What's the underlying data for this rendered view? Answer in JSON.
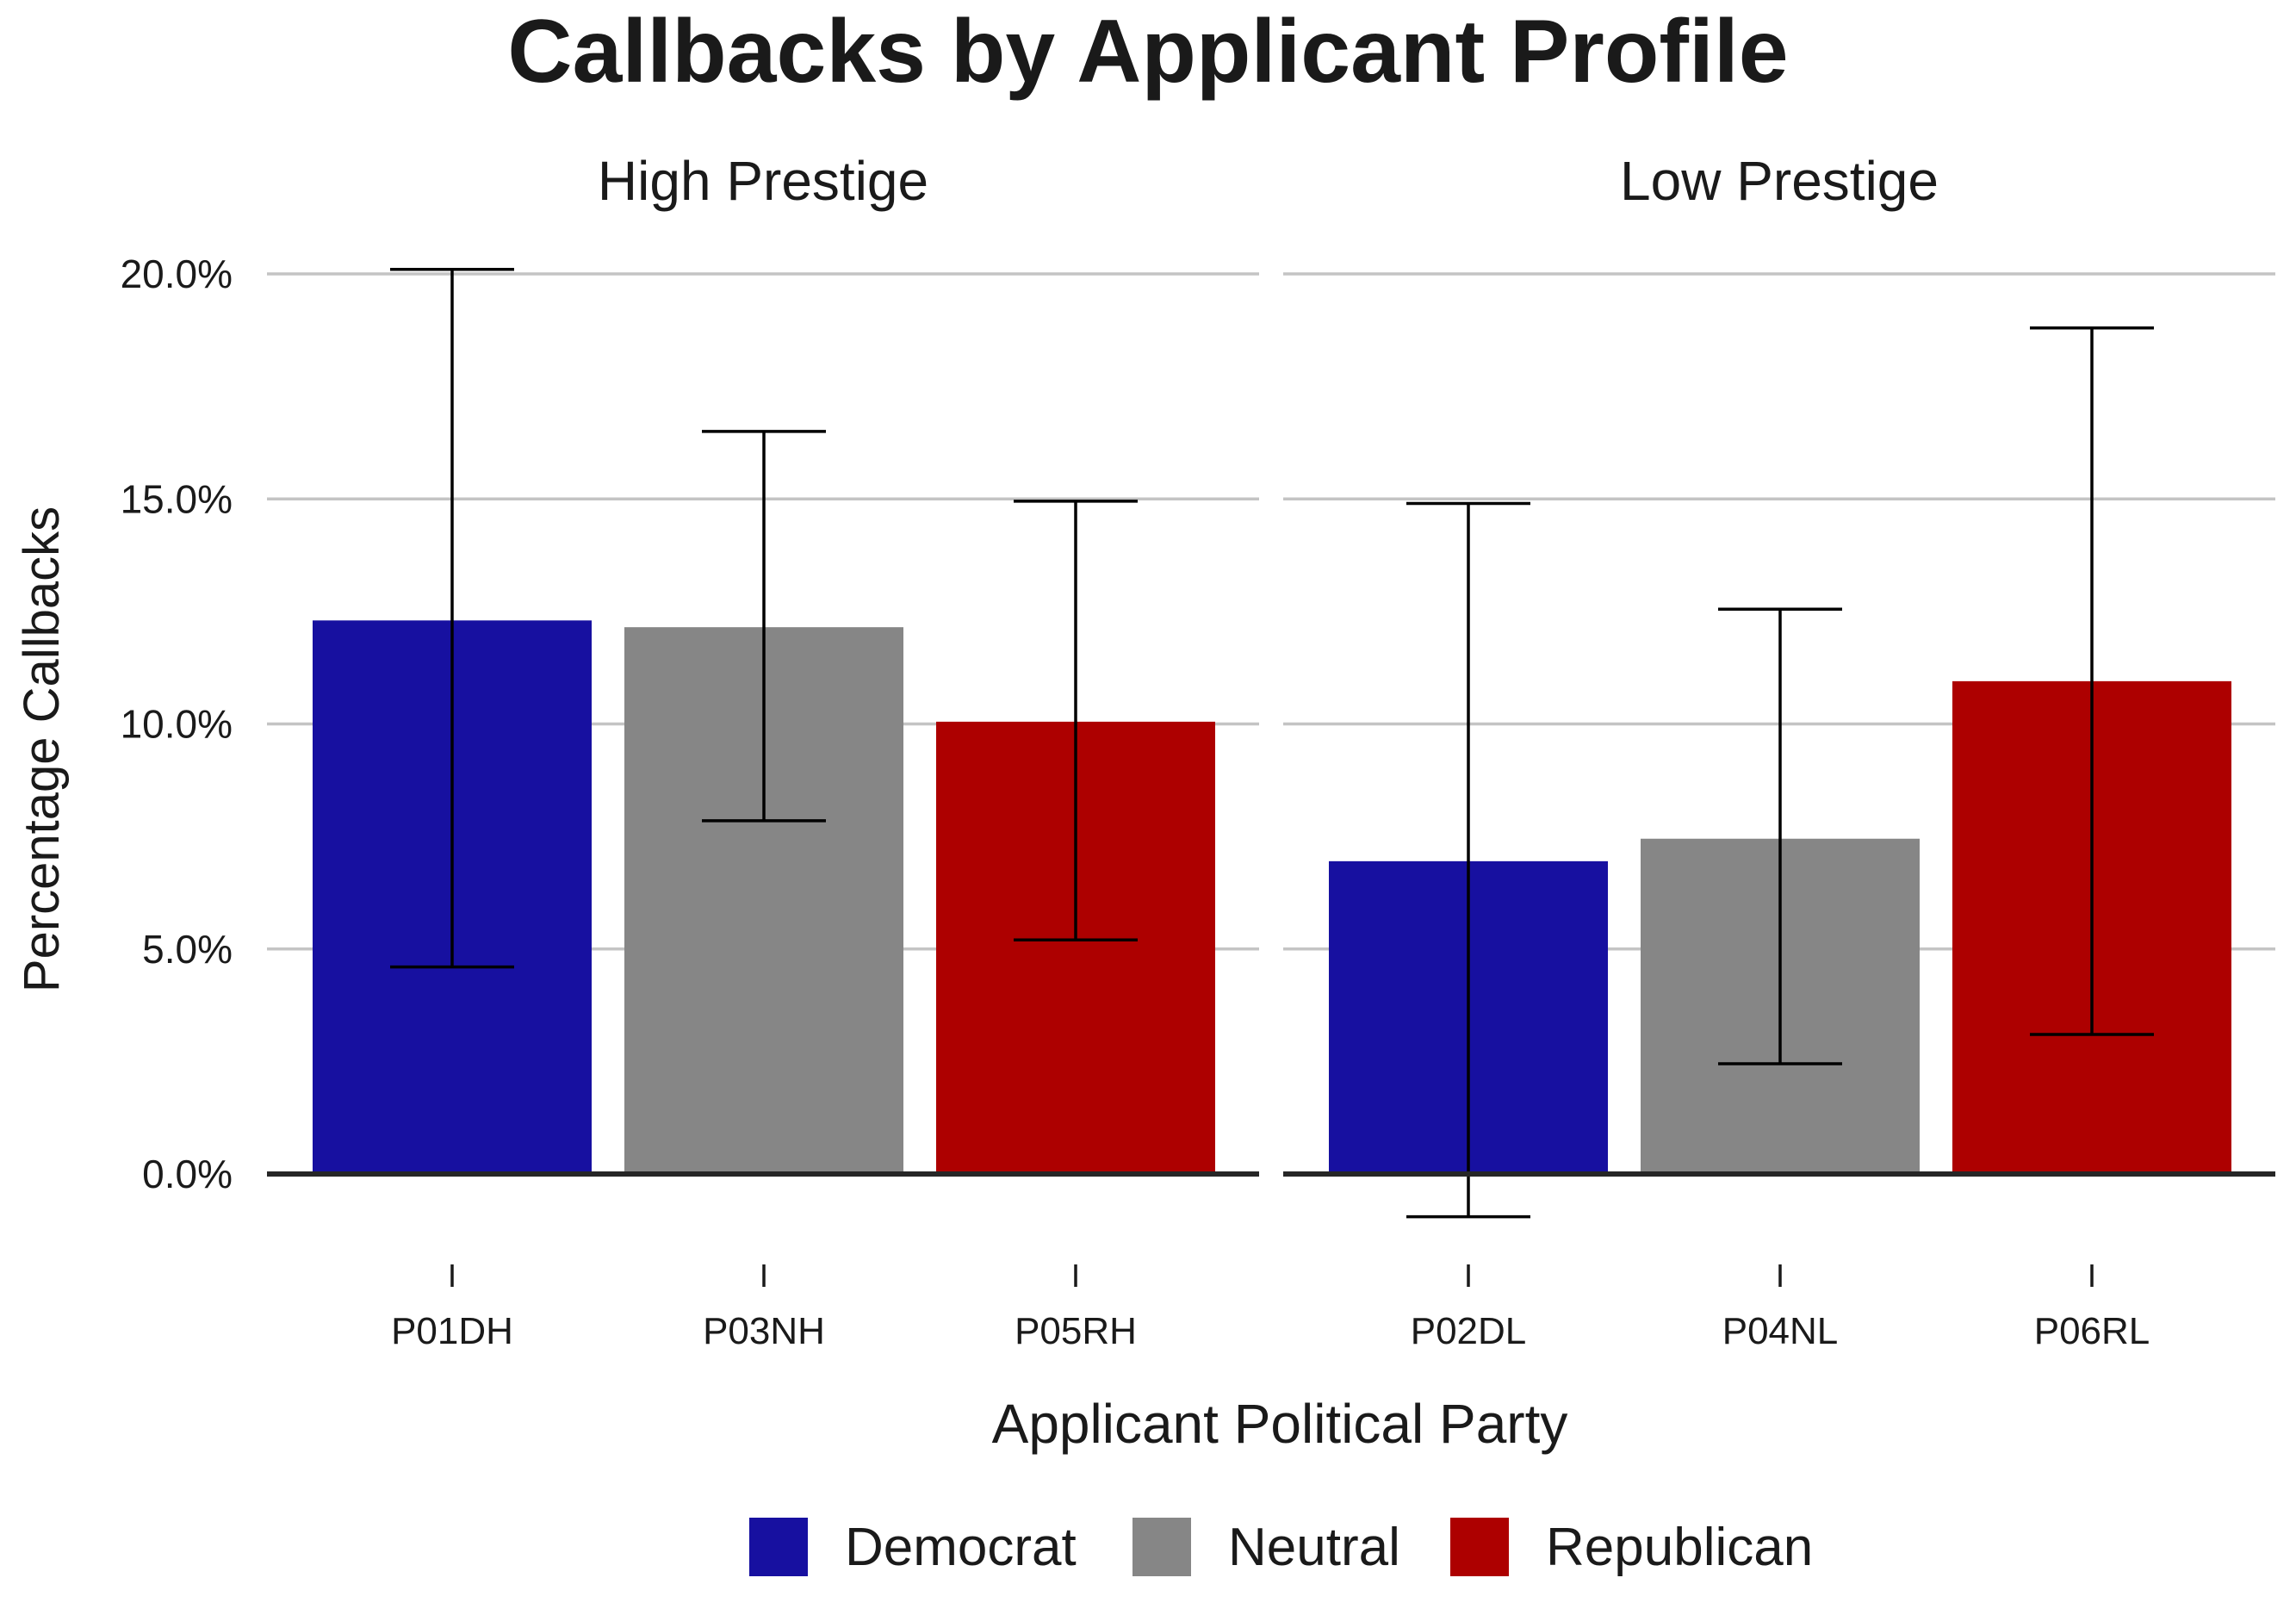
{
  "chart_data": {
    "type": "bar",
    "title": "Callbacks by Applicant Profile",
    "xlabel": "Applicant Political Party",
    "ylabel": "Percentage Callbacks",
    "ylim": [
      -2.0,
      21.0
    ],
    "yticks": [
      0,
      5,
      10,
      15,
      20
    ],
    "ytick_labels": [
      "0.0%",
      "5.0%",
      "10.0%",
      "15.0%",
      "20.0%"
    ],
    "grid": true,
    "legend_position": "bottom",
    "legend": [
      {
        "name": "Democrat",
        "color": "#1710a0"
      },
      {
        "name": "Neutral",
        "color": "#868686"
      },
      {
        "name": "Republican",
        "color": "#ad0000"
      }
    ],
    "panels": [
      {
        "label": "High Prestige",
        "bars": [
          {
            "category": "P01DH",
            "party": "Democrat",
            "value": 12.3,
            "ci": [
              4.6,
              20.1
            ]
          },
          {
            "category": "P03NH",
            "party": "Neutral",
            "value": 12.15,
            "ci": [
              7.85,
              16.5
            ]
          },
          {
            "category": "P05RH",
            "party": "Republican",
            "value": 10.05,
            "ci": [
              5.2,
              14.95
            ]
          }
        ]
      },
      {
        "label": "Low Prestige",
        "bars": [
          {
            "category": "P02DL",
            "party": "Democrat",
            "value": 6.95,
            "ci": [
              -0.95,
              14.9
            ]
          },
          {
            "category": "P04NL",
            "party": "Neutral",
            "value": 7.45,
            "ci": [
              2.45,
              12.55
            ]
          },
          {
            "category": "P06RL",
            "party": "Republican",
            "value": 10.95,
            "ci": [
              3.1,
              18.8
            ]
          }
        ]
      }
    ]
  }
}
